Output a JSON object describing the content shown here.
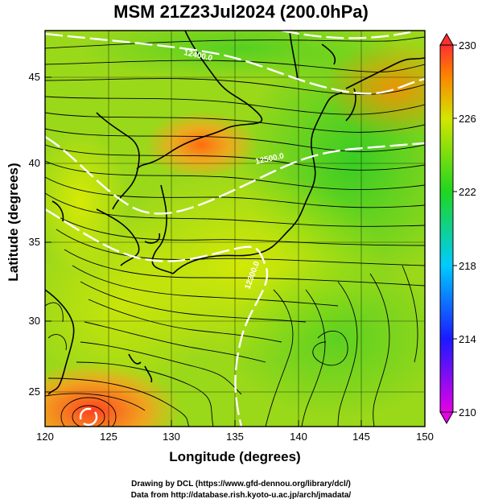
{
  "title": "MSM 21Z23Jul2024 (200.0hPa)",
  "map": {
    "xlabel": "Longitude (degrees)",
    "ylabel": "Latitude  (degrees)",
    "lon_ticks": [
      "120",
      "125",
      "130",
      "135",
      "140",
      "145",
      "150"
    ],
    "lat_ticks": [
      "25",
      "30",
      "35",
      "40",
      "45"
    ],
    "contour_labels": [
      "12300.0",
      "12400.0",
      "12500.0"
    ]
  },
  "colorbar": {
    "ticks": [
      "210",
      "214",
      "218",
      "222",
      "226",
      "230"
    ]
  },
  "credits": {
    "line1": "Drawing by DCL (https://www.gfd-dennou.org/library/dcl/)",
    "line2": "Data from http://database.rish.kyoto-u.ac.jp/arch/jmadata/"
  },
  "chart_data": {
    "type": "heatmap",
    "title": "MSM 21Z23Jul2024 (200.0hPa)",
    "xlabel": "Longitude (degrees)",
    "ylabel": "Latitude  (degrees)",
    "xlim": [
      120,
      150
    ],
    "ylim": [
      22.4,
      47.6
    ],
    "colorbar_range": [
      210,
      230
    ],
    "colorbar_ticks": [
      210,
      214,
      218,
      222,
      226,
      230
    ],
    "colormap": [
      "#e600e6",
      "#1a1aff",
      "#00ccff",
      "#1fd61f",
      "#d2e600",
      "#ff8000",
      "#ff3030"
    ],
    "contour_labels": [
      12300.0,
      12400.0,
      12500.0
    ],
    "overlays": [
      "streamlines",
      "coastlines",
      "height contours"
    ],
    "grid": true
  }
}
